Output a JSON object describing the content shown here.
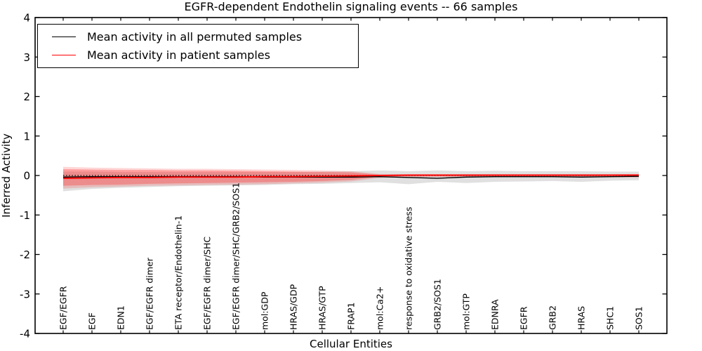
{
  "chart_data": {
    "type": "line",
    "title": "EGFR-dependent Endothelin signaling events -- 66 samples",
    "xlabel": "Cellular Entities",
    "ylabel": "Inferred Activity",
    "ylim": [
      -4,
      4
    ],
    "yticks": [
      4,
      3,
      2,
      1,
      0,
      -1,
      -2,
      -3,
      -4
    ],
    "ytick_labels": [
      "4",
      "3",
      "2",
      "1",
      "0",
      "-1",
      "-2",
      "-3",
      "-4"
    ],
    "grid": false,
    "legend_position": "upper left",
    "categories": [
      "EGF/EGFR",
      "EGF",
      "EDN1",
      "EGF/EGFR dimer",
      "ETA receptor/Endothelin-1",
      "EGF/EGFR dimer/SHC",
      "EGF/EGFR dimer/SHC/GRB2/SOS1",
      "mol:GDP",
      "HRAS/GDP",
      "HRAS/GTP",
      "FRAP1",
      "mol:Ca2+",
      "response to oxidative stress",
      "GRB2/SOS1",
      "mol:GTP",
      "EDNRA",
      "EGFR",
      "GRB2",
      "HRAS",
      "SHC1",
      "SOS1"
    ],
    "series": [
      {
        "name": "Mean activity in all permuted samples",
        "color": "#000000",
        "values": [
          -0.04,
          -0.03,
          -0.03,
          -0.03,
          -0.03,
          -0.03,
          -0.03,
          -0.04,
          -0.04,
          -0.04,
          -0.04,
          -0.03,
          -0.05,
          -0.07,
          -0.04,
          -0.03,
          -0.03,
          -0.03,
          -0.04,
          -0.03,
          -0.02
        ]
      },
      {
        "name": "Mean activity in patient samples",
        "color": "#ff0000",
        "values": [
          -0.07,
          -0.06,
          -0.05,
          -0.05,
          -0.04,
          -0.04,
          -0.04,
          -0.03,
          -0.03,
          -0.02,
          -0.01,
          0.0,
          0.01,
          0.01,
          0.01,
          0.01,
          0.01,
          0.01,
          0.01,
          0.01,
          0.01
        ]
      }
    ],
    "bands": [
      {
        "name": "permuted-samples-range",
        "color": "rgba(130,130,130,0.25)",
        "upper": [
          0.1,
          0.1,
          0.09,
          0.09,
          0.09,
          0.09,
          0.09,
          0.09,
          0.09,
          0.1,
          0.11,
          0.13,
          0.11,
          0.13,
          0.11,
          0.12,
          0.11,
          0.11,
          0.11,
          0.1,
          0.1
        ],
        "lower": [
          -0.4,
          -0.34,
          -0.31,
          -0.29,
          -0.27,
          -0.26,
          -0.25,
          -0.24,
          -0.22,
          -0.21,
          -0.19,
          -0.17,
          -0.22,
          -0.16,
          -0.19,
          -0.16,
          -0.15,
          -0.14,
          -0.16,
          -0.13,
          -0.12
        ]
      },
      {
        "name": "patient-samples-range-outer",
        "color": "rgba(255,30,30,0.18)",
        "upper": [
          0.22,
          0.2,
          0.19,
          0.18,
          0.17,
          0.17,
          0.16,
          0.15,
          0.14,
          0.13,
          0.11,
          0.04,
          0.03,
          0.03,
          0.03,
          0.03,
          0.03,
          0.03,
          0.03,
          0.03,
          0.04
        ],
        "lower": [
          -0.33,
          -0.3,
          -0.28,
          -0.26,
          -0.25,
          -0.24,
          -0.23,
          -0.22,
          -0.2,
          -0.18,
          -0.15,
          -0.06,
          -0.04,
          -0.04,
          -0.04,
          -0.04,
          -0.04,
          -0.04,
          -0.04,
          -0.04,
          -0.06
        ]
      },
      {
        "name": "patient-samples-range-inner",
        "color": "rgba(255,30,30,0.30)",
        "upper": [
          0.16,
          0.15,
          0.14,
          0.14,
          0.13,
          0.13,
          0.12,
          0.11,
          0.1,
          0.09,
          0.08,
          0.02,
          0.02,
          0.02,
          0.02,
          0.02,
          0.02,
          0.02,
          0.02,
          0.02,
          0.03
        ],
        "lower": [
          -0.26,
          -0.24,
          -0.23,
          -0.21,
          -0.2,
          -0.19,
          -0.18,
          -0.17,
          -0.16,
          -0.14,
          -0.11,
          -0.03,
          -0.02,
          -0.02,
          -0.02,
          -0.02,
          -0.02,
          -0.02,
          -0.02,
          -0.02,
          -0.03
        ]
      }
    ],
    "baseline": {
      "value": 0,
      "style": "dotted",
      "color": "#000000"
    }
  }
}
